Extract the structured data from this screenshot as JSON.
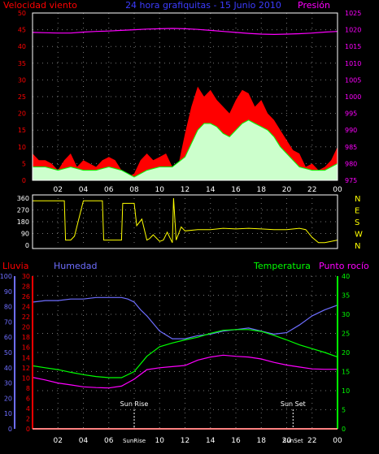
{
  "chart_data": [
    {
      "type": "line",
      "title": "24 hora grafiquitas - 15 Junio 2010",
      "left_axis_label": "Velocidad viento",
      "right_axis_label": "Presión",
      "left_ticks": [
        0,
        5,
        10,
        15,
        20,
        25,
        30,
        35,
        40,
        45,
        50
      ],
      "right_ticks": [
        975,
        980,
        985,
        990,
        995,
        1000,
        1005,
        1010,
        1015,
        1020,
        1025
      ],
      "x_ticks": [
        "02",
        "04",
        "06",
        "08",
        "10",
        "12",
        "14",
        "16",
        "18",
        "20",
        "22",
        "00"
      ],
      "ylim": [
        0,
        50
      ],
      "y2lim": [
        975,
        1025
      ],
      "series": [
        {
          "key": "gust",
          "color": "#ff0000",
          "x": [
            0,
            0.5,
            1,
            1.5,
            2,
            2.5,
            3,
            3.5,
            4,
            4.5,
            5,
            5.5,
            6,
            6.5,
            7,
            7.5,
            8,
            8.5,
            9,
            9.5,
            10,
            10.5,
            11,
            11.5,
            12,
            12.5,
            13,
            13.5,
            14,
            14.5,
            15,
            15.5,
            16,
            16.5,
            17,
            17.5,
            18,
            18.5,
            19,
            19.5,
            20,
            20.5,
            21,
            21.5,
            22,
            22.5,
            23,
            23.5,
            24
          ],
          "values": [
            8,
            6,
            6,
            5,
            3,
            6,
            8,
            4,
            6,
            5,
            4,
            6,
            7,
            6,
            3,
            1,
            2,
            6,
            8,
            6,
            7,
            8,
            4,
            5,
            14,
            22,
            28,
            25,
            27,
            24,
            22,
            20,
            24,
            27,
            26,
            22,
            24,
            20,
            18,
            15,
            12,
            9,
            8,
            4,
            5,
            3,
            4,
            6,
            10
          ]
        },
        {
          "key": "avg",
          "color": "#00ff00",
          "x": [
            0,
            1,
            2,
            3,
            4,
            5,
            6,
            7,
            8,
            9,
            10,
            11,
            12,
            12.5,
            13,
            13.5,
            14,
            14.5,
            15,
            15.5,
            16,
            16.5,
            17,
            17.5,
            18,
            18.5,
            19,
            19.5,
            20,
            20.5,
            21,
            22,
            23,
            24
          ],
          "values": [
            4,
            4,
            3,
            4,
            3,
            3,
            4,
            3,
            1,
            3,
            4,
            4,
            7,
            11,
            15,
            17,
            17,
            16,
            14,
            13,
            15,
            17,
            18,
            17,
            16,
            15,
            13,
            10,
            8,
            6,
            4,
            3,
            3,
            5
          ]
        },
        {
          "key": "pressure",
          "color": "#ff00ff",
          "axis": "right",
          "x": [
            0,
            1,
            2,
            3,
            4,
            5,
            6,
            7,
            8,
            9,
            10,
            11,
            12,
            13,
            14,
            15,
            16,
            17,
            18,
            19,
            20,
            21,
            22,
            23,
            24
          ],
          "values": [
            1019.2,
            1019.1,
            1019.0,
            1019.0,
            1019.3,
            1019.5,
            1019.6,
            1019.8,
            1020.0,
            1020.2,
            1020.3,
            1020.4,
            1020.3,
            1020.1,
            1019.8,
            1019.5,
            1019.2,
            1018.9,
            1018.7,
            1018.6,
            1018.7,
            1018.8,
            1019.0,
            1019.3,
            1019.5
          ]
        }
      ]
    },
    {
      "type": "line",
      "title": "",
      "left_ticks": [
        0,
        90,
        180,
        270,
        360
      ],
      "right_ticks": [
        "N",
        "W",
        "S",
        "E",
        "N"
      ],
      "ylim": [
        0,
        360
      ],
      "series": [
        {
          "key": "direction",
          "color": "#ffff00",
          "x": [
            0,
            0.3,
            2.5,
            2.6,
            3,
            3.3,
            4,
            4.1,
            5.5,
            5.6,
            7,
            7.1,
            8,
            8.2,
            8.6,
            9,
            9.2,
            9.5,
            10,
            10.3,
            10.6,
            11,
            11.1,
            11.3,
            11.7,
            12,
            13,
            14,
            15,
            16,
            17,
            18,
            19,
            20,
            21,
            21.5,
            22,
            22.5,
            23,
            24
          ],
          "values": [
            340,
            340,
            340,
            40,
            40,
            70,
            340,
            340,
            340,
            40,
            40,
            320,
            320,
            150,
            200,
            40,
            50,
            80,
            30,
            40,
            100,
            20,
            360,
            40,
            140,
            110,
            120,
            120,
            130,
            125,
            130,
            125,
            120,
            120,
            130,
            120,
            60,
            20,
            20,
            40
          ]
        }
      ]
    },
    {
      "type": "line",
      "title": "",
      "left_axis_labels": [
        "Lluvia",
        "Humedad"
      ],
      "right_axis_labels": [
        "Temperatura",
        "Punto rocío"
      ],
      "humidity_ticks": [
        0,
        10,
        20,
        30,
        40,
        50,
        60,
        70,
        80,
        90,
        100
      ],
      "rain_ticks": [
        0,
        2,
        4,
        6,
        8,
        10,
        12,
        14,
        16,
        18,
        20,
        22,
        24,
        26,
        28,
        30
      ],
      "temp_ticks": [
        0,
        5,
        10,
        15,
        20,
        25,
        30,
        35,
        40
      ],
      "x_ticks": [
        "02",
        "04",
        "06",
        "08",
        "10",
        "12",
        "14",
        "16",
        "18",
        "20",
        "22",
        "00"
      ],
      "annotations": [
        {
          "label": "Sun Rise",
          "x": 8.0
        },
        {
          "label": "Sun Set",
          "x": 20.5
        }
      ],
      "hidden_tick_labels": [
        "08"
      ],
      "series": [
        {
          "key": "humidity",
          "color": "#6e6eff",
          "axis": "humidity",
          "x": [
            0,
            1,
            2,
            3,
            4,
            5,
            6,
            7,
            7.5,
            8,
            8.5,
            9,
            9.5,
            10,
            11,
            12,
            13,
            14,
            15,
            16,
            17,
            18,
            19,
            20,
            21,
            22,
            23,
            24
          ],
          "values": [
            83,
            84,
            84,
            85,
            85,
            86,
            86,
            86,
            85,
            83,
            78,
            74,
            69,
            64,
            59,
            59,
            61,
            62,
            64,
            65,
            66,
            64,
            62,
            63,
            68,
            74,
            78,
            81
          ]
        },
        {
          "key": "temperature",
          "color": "#00ff00",
          "axis": "temperature",
          "x": [
            0,
            1,
            2,
            3,
            4,
            5,
            6,
            7,
            8,
            9,
            10,
            11,
            12,
            13,
            14,
            15,
            16,
            17,
            18,
            19,
            20,
            21,
            22,
            23,
            24
          ],
          "values": [
            16.5,
            16.0,
            15.5,
            14.8,
            14.2,
            13.7,
            13.4,
            13.4,
            15.0,
            19.0,
            21.5,
            22.5,
            23.3,
            24.0,
            25.0,
            25.8,
            26.0,
            26.0,
            25.5,
            24.5,
            23.3,
            22.0,
            21.0,
            20.0,
            18.8
          ]
        },
        {
          "key": "dewpoint",
          "color": "#ff00ff",
          "axis": "temperature",
          "x": [
            0,
            1,
            2,
            3,
            4,
            5,
            6,
            7,
            8,
            9,
            10,
            11,
            12,
            13,
            14,
            15,
            16,
            17,
            18,
            19,
            20,
            21,
            22,
            23,
            24
          ],
          "values": [
            13.5,
            12.8,
            12.0,
            11.5,
            11.0,
            10.8,
            10.7,
            11.2,
            13.0,
            15.5,
            16.0,
            16.3,
            16.6,
            18.0,
            18.8,
            19.3,
            19.0,
            18.8,
            18.3,
            17.4,
            16.7,
            16.2,
            15.7,
            15.6,
            15.6
          ]
        },
        {
          "key": "rain",
          "color": "#ff0000",
          "axis": "rain",
          "x": [
            0,
            24
          ],
          "values": [
            0,
            0
          ]
        }
      ]
    }
  ]
}
